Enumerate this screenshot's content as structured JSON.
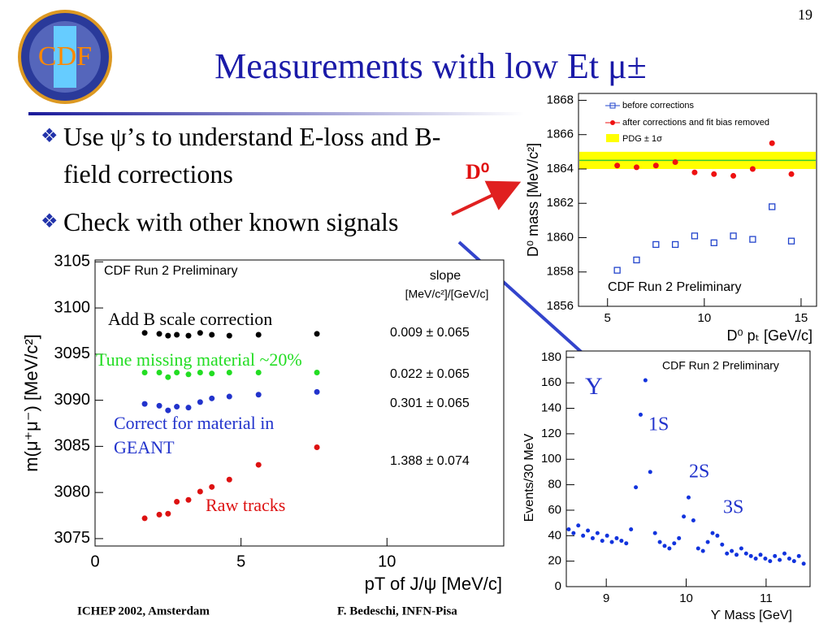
{
  "page_number": "19",
  "logo": "CDF",
  "title": "Measurements with low Et μ±",
  "bullets": [
    "Use ψ’s to understand E-loss and B-field corrections",
    "Check with other known signals"
  ],
  "d0_label": "D⁰",
  "footer": {
    "left": "ICHEP 2002, Amsterdam",
    "right": "F. Bedeschi, INFN-Pisa"
  },
  "chart_data": [
    {
      "type": "scatter",
      "title": "CDF Run 2 Preliminary",
      "x_label": "pT of J/ψ [MeV/c]",
      "y_label": "m(μ⁺μ⁻) [MeV/c²]",
      "slope_title": "slope",
      "slope_unit": "[MeV/c²]/[GeV/c]",
      "xlim": [
        0,
        14
      ],
      "ylim": [
        3074.2,
        3105.2
      ],
      "xticks": [
        0,
        5,
        10
      ],
      "yticks": [
        3075,
        3080,
        3085,
        3090,
        3095,
        3100,
        3105
      ],
      "x": [
        1.7,
        2.2,
        2.5,
        2.8,
        3.2,
        3.6,
        4.0,
        4.6,
        5.6,
        7.6
      ],
      "series": [
        {
          "name": "Add B scale correction",
          "color": "#000000",
          "marker": "circle",
          "slope": "0.009 ± 0.065",
          "values": [
            3097.3,
            3097.2,
            3097.0,
            3097.1,
            3097.0,
            3097.3,
            3097.1,
            3097.0,
            3097.1,
            3097.2
          ]
        },
        {
          "name": "Tune missing material ~20%",
          "color": "#22dd22",
          "marker": "circle",
          "slope": "0.022 ± 0.065",
          "values": [
            3093.0,
            3093.0,
            3092.5,
            3093.0,
            3092.8,
            3093.0,
            3092.9,
            3093.0,
            3093.0,
            3093.0
          ]
        },
        {
          "name": "Correct for material in GEANT",
          "color": "#2233cc",
          "marker": "circle",
          "slope": "0.301 ± 0.065",
          "values": [
            3089.6,
            3089.4,
            3088.9,
            3089.3,
            3089.2,
            3089.8,
            3090.2,
            3090.4,
            3090.6,
            3090.9
          ]
        },
        {
          "name": "Raw tracks",
          "color": "#dd1111",
          "marker": "circle",
          "slope": "1.388 ± 0.074",
          "values": [
            3077.2,
            3077.6,
            3077.7,
            3079.0,
            3079.2,
            3080.1,
            3080.6,
            3081.4,
            3083.0,
            3084.9
          ]
        }
      ]
    },
    {
      "type": "scatter",
      "title": "CDF Run 2 Preliminary",
      "x_label": "D⁰ pₜ [GeV/c]",
      "y_label": "D⁰ mass [MeV/c²]",
      "xlim": [
        3.5,
        15.8
      ],
      "ylim": [
        1856,
        1868.4
      ],
      "xticks": [
        5,
        10,
        15
      ],
      "yticks": [
        1856,
        1858,
        1860,
        1862,
        1864,
        1866,
        1868
      ],
      "x": [
        5.5,
        6.5,
        7.5,
        8.5,
        9.5,
        10.5,
        11.5,
        12.5,
        13.5,
        14.5
      ],
      "pdg": {
        "name": "PDG ± 1σ",
        "value": 1864.5,
        "error": 0.5,
        "color": "#ffff00",
        "line_color": "#33cc33"
      },
      "series": [
        {
          "name": "before corrections",
          "color": "#2244cc",
          "marker": "open-square",
          "values": [
            1858.1,
            1858.7,
            1859.6,
            1859.6,
            1860.1,
            1859.7,
            1860.1,
            1859.9,
            1861.8,
            1859.8
          ]
        },
        {
          "name": "after corrections and fit bias removed",
          "color": "#ee1111",
          "marker": "circle",
          "values": [
            1864.2,
            1864.1,
            1864.2,
            1864.4,
            1863.8,
            1863.7,
            1863.6,
            1864.0,
            1865.5,
            1863.7
          ]
        }
      ]
    },
    {
      "type": "scatter",
      "title": "CDF Run 2 Preliminary",
      "x_label": "ϒ Mass [GeV]",
      "y_label": "Events/30 MeV",
      "annotations": [
        "Υ",
        "1S",
        "2S",
        "3S"
      ],
      "xlim": [
        8.5,
        11.55
      ],
      "ylim": [
        0,
        185
      ],
      "xticks": [
        9,
        10,
        11
      ],
      "yticks": [
        0,
        20,
        40,
        60,
        80,
        100,
        120,
        140,
        160,
        180
      ],
      "x": [
        8.53,
        8.59,
        8.65,
        8.71,
        8.77,
        8.83,
        8.89,
        8.95,
        9.01,
        9.07,
        9.13,
        9.19,
        9.25,
        9.31,
        9.37,
        9.43,
        9.49,
        9.55,
        9.61,
        9.67,
        9.73,
        9.79,
        9.85,
        9.91,
        9.97,
        10.03,
        10.09,
        10.15,
        10.21,
        10.27,
        10.33,
        10.39,
        10.45,
        10.51,
        10.57,
        10.63,
        10.69,
        10.75,
        10.81,
        10.87,
        10.93,
        10.99,
        11.05,
        11.11,
        11.17,
        11.23,
        11.29,
        11.35,
        11.41,
        11.47
      ],
      "series": [
        {
          "color": "#1133dd",
          "marker": "dot",
          "values": [
            45,
            42,
            48,
            40,
            44,
            38,
            42,
            36,
            40,
            35,
            38,
            36,
            34,
            45,
            78,
            135,
            162,
            90,
            42,
            35,
            32,
            30,
            34,
            38,
            55,
            70,
            52,
            30,
            28,
            35,
            42,
            40,
            33,
            26,
            28,
            25,
            30,
            26,
            24,
            22,
            25,
            22,
            20,
            24,
            21,
            26,
            22,
            20,
            24,
            18
          ]
        }
      ]
    }
  ]
}
